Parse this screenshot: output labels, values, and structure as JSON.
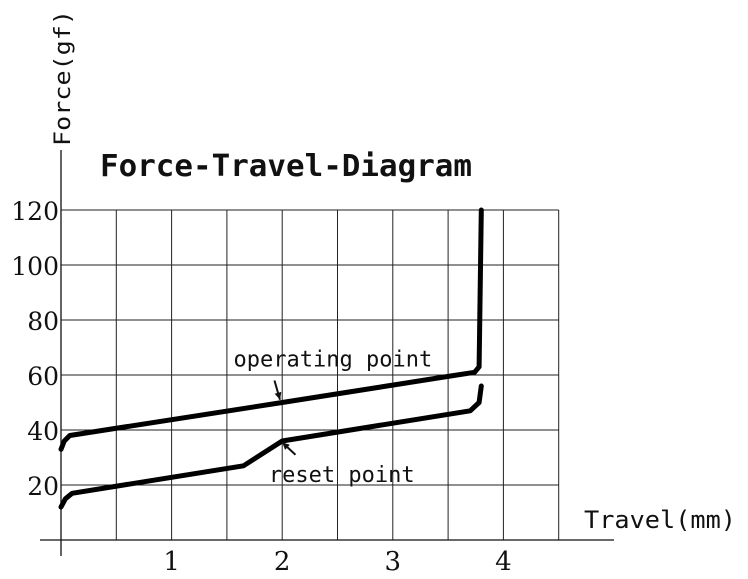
{
  "chart_data": {
    "type": "line",
    "title": "Force-Travel-Diagram",
    "xlabel": "Travel(mm)",
    "ylabel": "Force(gf)",
    "xlim": [
      0,
      4.5
    ],
    "ylim": [
      0,
      120
    ],
    "x_ticks": [
      1,
      2,
      3,
      4
    ],
    "x_tick_labels": [
      "1",
      "2",
      "3",
      "4"
    ],
    "y_ticks": [
      20,
      40,
      60,
      80,
      100,
      120
    ],
    "y_tick_labels": [
      "20",
      "40",
      "60",
      "80",
      "100",
      "120"
    ],
    "grid": true,
    "grid_x_step": 0.5,
    "grid_y_step": 20,
    "series": [
      {
        "x": [
          0,
          0.03,
          0.08,
          2.0,
          3.5,
          3.74,
          3.78,
          3.8
        ],
        "y": [
          33,
          36,
          38,
          50,
          59.5,
          61,
          63,
          120
        ],
        "color": "#000000"
      },
      {
        "x": [
          0,
          0.04,
          0.1,
          1.65,
          2.0,
          3.7,
          3.78,
          3.8
        ],
        "y": [
          12,
          15,
          17,
          27,
          36,
          47,
          50,
          56
        ],
        "color": "#000000"
      }
    ],
    "annotations": [
      {
        "text": "operating point",
        "x": 1.56,
        "y": 66,
        "arrow_from": [
          1.93,
          58
        ],
        "arrow_to": [
          1.98,
          51
        ]
      },
      {
        "text": "reset point",
        "x": 1.88,
        "y": 24,
        "arrow_from": [
          2.12,
          31
        ],
        "arrow_to": [
          2.0,
          35.5
        ]
      }
    ]
  }
}
